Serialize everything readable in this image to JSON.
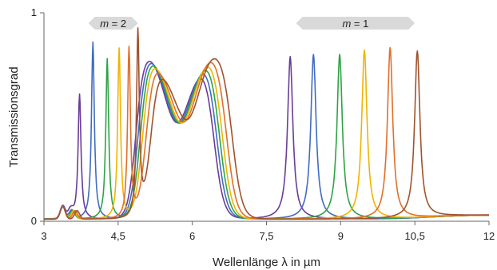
{
  "chart_data": {
    "type": "line",
    "title": "",
    "xlabel": "Wellenlänge λ in µm",
    "ylabel": "Transmissionsgrad",
    "xlim": [
      3,
      12
    ],
    "ylim": [
      0,
      1
    ],
    "x_ticks": [
      "3",
      "4,5",
      "6",
      "7,5",
      "9",
      "10,5",
      "12"
    ],
    "x_tick_values": [
      3,
      4.5,
      6,
      7.5,
      9,
      10.5,
      12
    ],
    "y_ticks": [
      "0",
      "1"
    ],
    "y_tick_values": [
      0,
      1
    ],
    "grid": false,
    "legend": "none",
    "annotations": [
      {
        "text": "m = 2",
        "symbol": "m",
        "rest": " = 2",
        "x_from": 3.9,
        "x_to": 4.9,
        "y": 0.95,
        "color": "#d9d9d9"
      },
      {
        "text": "m = 1",
        "symbol": "m",
        "rest": " = 1",
        "x_from": 8.1,
        "x_to": 10.5,
        "y": 0.95,
        "color": "#d9d9d9"
      }
    ],
    "series": [
      {
        "color": "#6a3c97",
        "peak1": 7.98,
        "peak1_height": 0.78,
        "peak2": 3.72,
        "peak2_height": 0.6,
        "band_shift": -0.08
      },
      {
        "color": "#3f6cc0",
        "peak1": 8.45,
        "peak1_height": 0.79,
        "peak2": 3.99,
        "peak2_height": 0.85,
        "band_shift": -0.04
      },
      {
        "color": "#2ea345",
        "peak1": 8.98,
        "peak1_height": 0.79,
        "peak2": 4.28,
        "peak2_height": 0.77,
        "band_shift": 0.0
      },
      {
        "color": "#f0b400",
        "peak1": 9.48,
        "peak1_height": 0.81,
        "peak2": 4.52,
        "peak2_height": 0.82,
        "band_shift": 0.04
      },
      {
        "color": "#e0702a",
        "peak1": 10.0,
        "peak1_height": 0.82,
        "peak2": 4.72,
        "peak2_height": 0.82,
        "band_shift": 0.1
      },
      {
        "color": "#a0522d",
        "peak1": 10.55,
        "peak1_height": 0.8,
        "peak2": 4.9,
        "peak2_height": 0.89,
        "band_shift": 0.18
      }
    ]
  }
}
